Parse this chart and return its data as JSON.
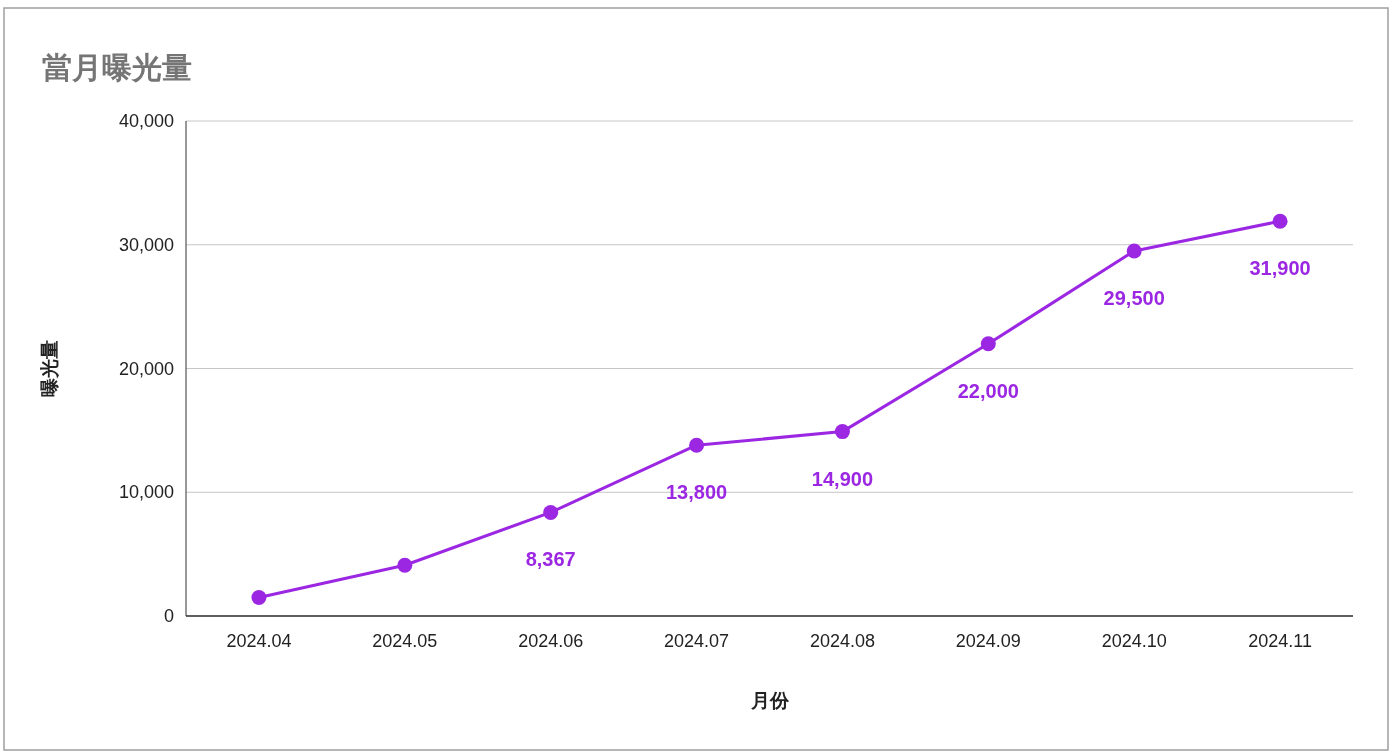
{
  "chart_data": {
    "type": "line",
    "title": "當月曝光量",
    "xlabel": "月份",
    "ylabel": "曝光量",
    "categories": [
      "2024.04",
      "2024.05",
      "2024.06",
      "2024.07",
      "2024.08",
      "2024.09",
      "2024.10",
      "2024.11"
    ],
    "values": [
      1500,
      4100,
      8367,
      13800,
      14900,
      22000,
      29500,
      31900
    ],
    "value_labels": [
      null,
      null,
      "8,367",
      "13,800",
      "14,900",
      "22,000",
      "29,500",
      "31,900"
    ],
    "color": "#9b27e2",
    "marker": "circle",
    "grid": "y",
    "ylim": [
      0,
      40000
    ],
    "yticks": [
      {
        "value": 0,
        "label": "0"
      },
      {
        "value": 10000,
        "label": "10,000"
      },
      {
        "value": 20000,
        "label": "20,000"
      },
      {
        "value": 30000,
        "label": "30,000"
      },
      {
        "value": 40000,
        "label": "40,000"
      }
    ]
  }
}
